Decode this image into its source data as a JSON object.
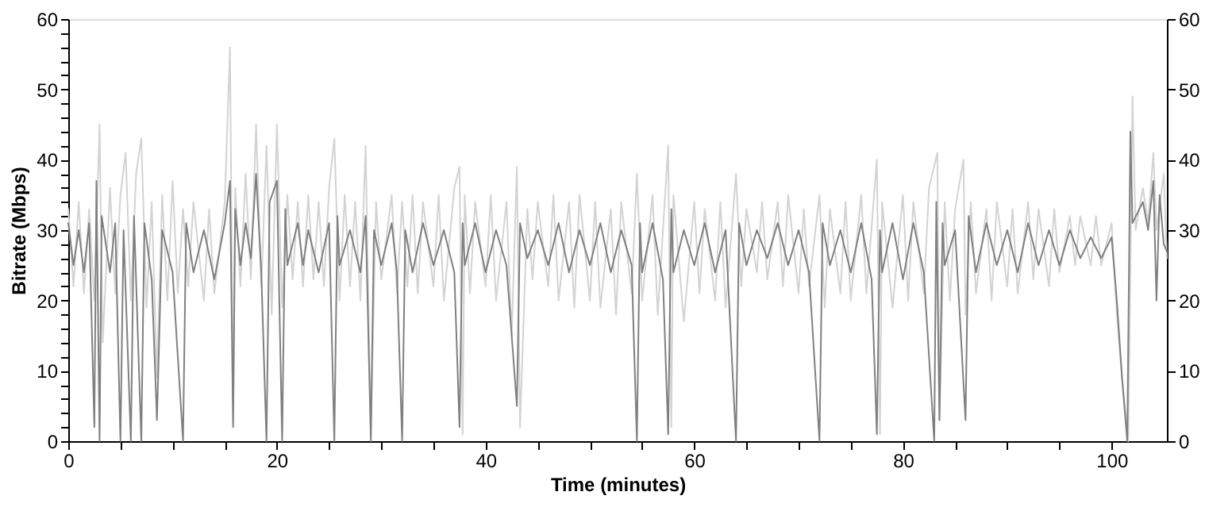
{
  "chart_data": {
    "type": "line",
    "xlabel": "Time (minutes)",
    "ylabel": "Bitrate (Mbps)",
    "xlim": [
      0,
      105.3
    ],
    "ylim": [
      0,
      60
    ],
    "y2lim": [
      0,
      60
    ],
    "xticks": [
      0,
      {
        "value": 5,
        "label": null
      },
      {
        "value": 10,
        "label": null
      },
      {
        "value": 15,
        "label": null
      },
      20,
      {
        "value": 25,
        "label": null
      },
      {
        "value": 30,
        "label": null
      },
      {
        "value": 35,
        "label": null
      },
      40,
      {
        "value": 45,
        "label": null
      },
      {
        "value": 50,
        "label": null
      },
      {
        "value": 55,
        "label": null
      },
      60,
      {
        "value": 65,
        "label": null
      },
      {
        "value": 70,
        "label": null
      },
      {
        "value": 75,
        "label": null
      },
      80,
      {
        "value": 85,
        "label": null
      },
      {
        "value": 90,
        "label": null
      },
      {
        "value": 95,
        "label": null
      },
      100
    ],
    "yticks": [
      0,
      {
        "value": 2,
        "label": null
      },
      {
        "value": 4,
        "label": null
      },
      {
        "value": 6,
        "label": null
      },
      {
        "value": 8,
        "label": null
      },
      10,
      {
        "value": 12,
        "label": null
      },
      {
        "value": 14,
        "label": null
      },
      {
        "value": 16,
        "label": null
      },
      {
        "value": 18,
        "label": null
      },
      20,
      {
        "value": 22,
        "label": null
      },
      {
        "value": 24,
        "label": null
      },
      {
        "value": 26,
        "label": null
      },
      {
        "value": 28,
        "label": null
      },
      30,
      {
        "value": 32,
        "label": null
      },
      {
        "value": 34,
        "label": null
      },
      {
        "value": 36,
        "label": null
      },
      {
        "value": 38,
        "label": null
      },
      40,
      {
        "value": 42,
        "label": null
      },
      {
        "value": 44,
        "label": null
      },
      {
        "value": 46,
        "label": null
      },
      {
        "value": 48,
        "label": null
      },
      50,
      {
        "value": 52,
        "label": null
      },
      {
        "value": 54,
        "label": null
      },
      {
        "value": 56,
        "label": null
      },
      {
        "value": 58,
        "label": null
      },
      60
    ],
    "y2ticks": [
      0,
      10,
      20,
      30,
      40,
      50,
      60
    ],
    "grid": false,
    "marker": "none",
    "line_style": "solid",
    "series": [
      {
        "color": "#d3d3d3",
        "x": [
          0,
          0.5,
          1,
          1.5,
          2,
          2.5,
          3,
          3.3,
          4,
          4.5,
          5,
          5.5,
          6,
          6.5,
          7,
          7.5,
          8,
          8.5,
          9,
          9.5,
          10,
          10.5,
          11,
          11.5,
          12,
          13,
          13.5,
          14,
          15,
          15.5,
          15.8,
          16,
          16.5,
          17,
          17.5,
          18,
          18.5,
          19,
          19.5,
          20,
          20.5,
          21,
          21.5,
          22,
          22.5,
          23,
          23.5,
          24,
          24.5,
          25,
          25.5,
          26,
          26.5,
          27,
          27.5,
          28,
          28.5,
          29,
          29.5,
          30,
          31,
          31.5,
          32,
          32.5,
          33,
          33.5,
          34,
          35,
          35.5,
          36,
          37,
          37.5,
          37.8,
          38,
          38.5,
          39,
          40,
          40.5,
          41,
          42,
          42.5,
          43,
          43.3,
          44,
          44.5,
          45,
          46,
          46.5,
          47,
          48,
          48.5,
          49,
          50,
          50.5,
          51,
          52,
          52.5,
          53,
          54,
          54.5,
          55,
          56,
          56.5,
          57.5,
          57.8,
          58,
          59,
          60,
          60.5,
          61,
          62,
          62.5,
          63,
          64,
          64.5,
          65,
          66,
          66.5,
          67,
          68,
          68.5,
          69,
          70,
          70.5,
          71,
          72,
          72.5,
          73,
          74,
          74.5,
          75,
          76,
          76.5,
          77.5,
          77.8,
          78,
          79,
          80,
          80.5,
          81,
          82,
          82.5,
          83.3,
          83.5,
          84,
          84.5,
          85,
          85.8,
          86,
          86.5,
          87,
          88,
          88.5,
          89,
          90,
          90.5,
          91,
          92,
          92.5,
          93,
          94,
          94.5,
          95,
          96,
          96.5,
          97,
          98,
          98.5,
          99,
          100,
          100.5,
          101,
          101.6,
          102,
          102.3,
          103,
          103.5,
          104,
          104.3,
          105,
          105.3
        ],
        "values": [
          33,
          22,
          34,
          21,
          33,
          20,
          45,
          14,
          36,
          21,
          35,
          41,
          20,
          38,
          43,
          19,
          34,
          9,
          35,
          20,
          37,
          21,
          33,
          22,
          34,
          20,
          33,
          21,
          34,
          56,
          3,
          36,
          22,
          38,
          23,
          45,
          22,
          42,
          18,
          45,
          19,
          35,
          23,
          34,
          22,
          35,
          23,
          34,
          22,
          36,
          43,
          20,
          35,
          22,
          34,
          20,
          42,
          1,
          34,
          23,
          35,
          21,
          34,
          22,
          35,
          21,
          34,
          22,
          35,
          20,
          36,
          39,
          1,
          35,
          21,
          34,
          22,
          35,
          20,
          34,
          15,
          39,
          2,
          33,
          23,
          34,
          22,
          35,
          20,
          34,
          19,
          35,
          20,
          34,
          19,
          33,
          18,
          34,
          21,
          38,
          20,
          35,
          18,
          42,
          2,
          35,
          17,
          34,
          21,
          33,
          20,
          34,
          19,
          38,
          22,
          33,
          24,
          34,
          23,
          34,
          22,
          35,
          21,
          33,
          22,
          35,
          19,
          33,
          21,
          34,
          20,
          35,
          21,
          40,
          1,
          34,
          19,
          35,
          20,
          34,
          21,
          36,
          41,
          3,
          34,
          20,
          33,
          40,
          18,
          34,
          21,
          33,
          20,
          34,
          22,
          33,
          21,
          34,
          23,
          33,
          22,
          33,
          24,
          32,
          25,
          32,
          25,
          32,
          25,
          31,
          18,
          9,
          0,
          49,
          30,
          36,
          31,
          41,
          30,
          38,
          26
        ]
      },
      {
        "color": "#808080",
        "x": [
          0,
          0.5,
          1,
          1.5,
          2,
          2.5,
          2.7,
          3,
          3.2,
          4,
          4.5,
          5,
          5.3,
          6,
          6.3,
          7,
          7.3,
          8,
          8.5,
          9,
          10,
          11,
          11.3,
          12,
          13,
          14,
          15,
          15.5,
          15.8,
          16,
          16.5,
          17,
          17.5,
          18,
          18.5,
          19,
          19.3,
          20,
          20.5,
          20.8,
          21,
          22,
          22.5,
          23,
          24,
          25,
          25.5,
          25.8,
          26,
          27,
          28,
          28.5,
          29,
          29.3,
          30,
          31,
          31.5,
          32,
          32.3,
          33,
          34,
          35,
          36,
          37,
          37.5,
          37.8,
          38,
          39,
          40,
          41,
          42,
          43,
          43.3,
          44,
          45,
          46,
          47,
          48,
          49,
          50,
          51,
          52,
          53,
          54,
          54.5,
          54.8,
          55,
          56,
          57,
          57.5,
          57.8,
          58,
          59,
          60,
          61,
          62,
          63,
          64,
          64.3,
          65,
          66,
          67,
          68,
          69,
          70,
          71,
          72,
          72.3,
          73,
          74,
          75,
          76,
          77,
          77.5,
          77.8,
          78,
          79,
          80,
          81,
          82,
          83,
          83.2,
          83.5,
          83.8,
          84,
          85,
          86,
          86.3,
          87,
          88,
          89,
          90,
          91,
          92,
          93,
          94,
          95,
          96,
          97,
          98,
          99,
          100,
          100.5,
          101,
          101.5,
          101.8,
          102,
          103,
          103.5,
          104,
          104.3,
          104.6,
          105,
          105.3
        ],
        "values": [
          31,
          25,
          30,
          24,
          31,
          2,
          37,
          0,
          32,
          24,
          31,
          0,
          30,
          0,
          32,
          0,
          31,
          23,
          3,
          30,
          24,
          0,
          31,
          24,
          30,
          23,
          31,
          37,
          2,
          33,
          25,
          31,
          26,
          38,
          24,
          0,
          34,
          37,
          0,
          33,
          25,
          31,
          25,
          30,
          24,
          31,
          0,
          32,
          25,
          30,
          24,
          32,
          0,
          30,
          25,
          31,
          24,
          0,
          30,
          24,
          31,
          25,
          30,
          24,
          2,
          31,
          25,
          31,
          24,
          30,
          25,
          5,
          31,
          26,
          30,
          25,
          31,
          24,
          30,
          25,
          31,
          24,
          30,
          25,
          0,
          31,
          24,
          31,
          23,
          1,
          33,
          24,
          30,
          25,
          31,
          24,
          30,
          0,
          31,
          25,
          30,
          26,
          31,
          25,
          30,
          24,
          0,
          31,
          25,
          30,
          24,
          31,
          23,
          1,
          30,
          24,
          31,
          23,
          31,
          24,
          0,
          34,
          3,
          31,
          25,
          30,
          3,
          32,
          24,
          31,
          25,
          30,
          24,
          31,
          25,
          30,
          25,
          30,
          26,
          29,
          26,
          29,
          20,
          9,
          0,
          44,
          31,
          34,
          30,
          37,
          20,
          35,
          28,
          27
        ]
      }
    ]
  }
}
